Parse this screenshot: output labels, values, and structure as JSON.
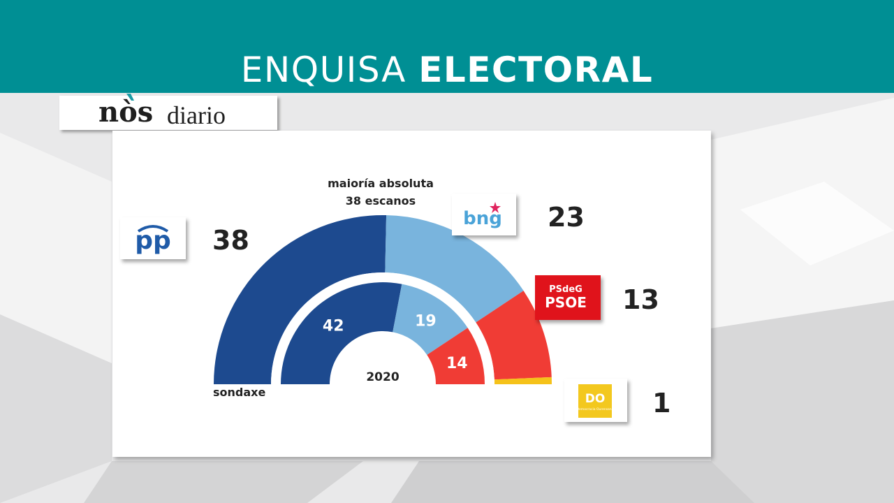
{
  "header": {
    "title_light": "ENQUISA ",
    "title_bold": "ELECTORAL"
  },
  "brand": {
    "name_bold": "nòs",
    "name_light": "diario"
  },
  "chart_data": {
    "type": "pie",
    "subtype": "parliament-semicircle",
    "annotation": [
      "maioría absoluta",
      "38 escanos"
    ],
    "outer_ring": {
      "label": "sondaxe",
      "series": [
        {
          "name": "PP",
          "value": 38,
          "color": "#1d4a8f"
        },
        {
          "name": "BNG",
          "value": 23,
          "color": "#79b4dd"
        },
        {
          "name": "PSdeG-PSOE",
          "value": 13,
          "color": "#f03c35"
        },
        {
          "name": "DO",
          "value": 1,
          "color": "#f5c21a"
        }
      ]
    },
    "inner_ring": {
      "label": "2020",
      "series": [
        {
          "name": "PP",
          "value": 42,
          "color": "#1d4a8f"
        },
        {
          "name": "BNG",
          "value": 19,
          "color": "#79b4dd"
        },
        {
          "name": "PSdeG-PSOE",
          "value": 14,
          "color": "#f03c35"
        }
      ]
    }
  },
  "legend": {
    "pp": {
      "logo_text": "pp",
      "seats": "38"
    },
    "bng": {
      "logo_text": "bng",
      "seats": "23"
    },
    "psoe": {
      "logo_top": "PSdeG",
      "logo_main": "PSOE",
      "seats": "13"
    },
    "do": {
      "logo_text": "DO",
      "logo_sub": "Democracia Ourensana",
      "seats": "1"
    }
  }
}
